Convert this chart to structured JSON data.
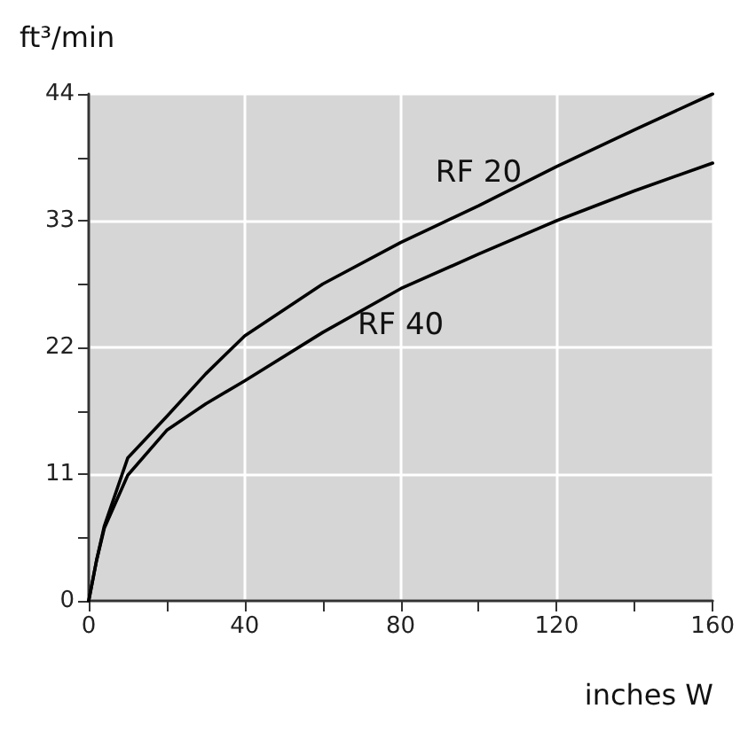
{
  "chart_data": {
    "type": "line",
    "xlabel": "inches W",
    "ylabel": "ft³/min",
    "xlim": [
      0,
      160
    ],
    "ylim": [
      0,
      44
    ],
    "xticks": [
      0,
      {
        "value": 20,
        "label": null
      },
      40,
      {
        "value": 60,
        "label": null
      },
      80,
      {
        "value": 100,
        "label": null
      },
      120,
      {
        "value": 140,
        "label": null
      },
      160
    ],
    "yticks": [
      0,
      {
        "value": 5.5,
        "label": null
      },
      11,
      {
        "value": 16.5,
        "label": null
      },
      22,
      {
        "value": 27.5,
        "label": null
      },
      33,
      {
        "value": 38.5,
        "label": null
      },
      44
    ],
    "grid": true,
    "legend": false,
    "marker": "none",
    "line_style": "solid",
    "series": [
      {
        "name": "RF 20",
        "color": "#000000",
        "x": [
          0,
          2,
          4,
          10,
          20,
          30,
          40,
          60,
          80,
          100,
          120,
          140,
          160
        ],
        "values": [
          0,
          3.5,
          6.5,
          12.4,
          16,
          19.7,
          23,
          27.5,
          31.1,
          34.3,
          37.7,
          40.9,
          44
        ]
      },
      {
        "name": "RF 40",
        "color": "#000000",
        "x": [
          0,
          2,
          4,
          10,
          20,
          30,
          40,
          60,
          80,
          100,
          120,
          140,
          160
        ],
        "values": [
          0,
          3.5,
          6.3,
          10.9,
          14.8,
          17.1,
          19.1,
          23.3,
          27.1,
          30.1,
          33,
          35.6,
          38
        ]
      }
    ]
  }
}
